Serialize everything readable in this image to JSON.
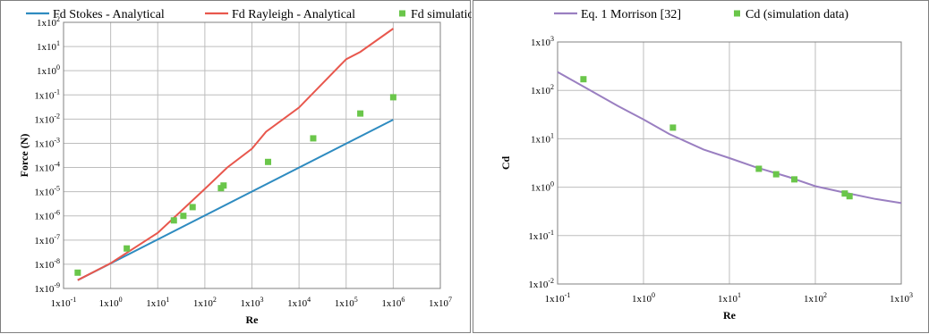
{
  "chart_data": [
    {
      "type": "line",
      "xscale": "log",
      "yscale": "log",
      "xlabel": "Re",
      "ylabel": "Force (N)",
      "xlim": [
        0.1,
        10000000
      ],
      "ylim": [
        1e-09,
        100
      ],
      "x_ticks": [
        {
          "v": 0.1,
          "label": "1x10-1"
        },
        {
          "v": 1,
          "label": "1x100"
        },
        {
          "v": 10,
          "label": "1x101"
        },
        {
          "v": 100,
          "label": "1x102"
        },
        {
          "v": 1000,
          "label": "1x103"
        },
        {
          "v": 10000,
          "label": "1x104"
        },
        {
          "v": 100000,
          "label": "1x105"
        },
        {
          "v": 1000000,
          "label": "1x106"
        },
        {
          "v": 10000000,
          "label": "1x107"
        }
      ],
      "y_ticks": [
        {
          "v": 1e-09,
          "label": "1x10-9"
        },
        {
          "v": 1e-08,
          "label": "1x10-8"
        },
        {
          "v": 1e-07,
          "label": "1x10-7"
        },
        {
          "v": 1e-06,
          "label": "1x10-6"
        },
        {
          "v": 1e-05,
          "label": "1x10-5"
        },
        {
          "v": 0.0001,
          "label": "1x10-4"
        },
        {
          "v": 0.001,
          "label": "1x10-3"
        },
        {
          "v": 0.01,
          "label": "1x10-2"
        },
        {
          "v": 0.1,
          "label": "1x10-1"
        },
        {
          "v": 1,
          "label": "1x100"
        },
        {
          "v": 10,
          "label": "1x101"
        },
        {
          "v": 100,
          "label": "1x102"
        }
      ],
      "grid": true,
      "legend_position": "top",
      "series": [
        {
          "name": "Fd Stokes - Analytical",
          "kind": "line",
          "color": "#2e8bc0",
          "x": [
            0.2,
            1000000
          ],
          "y": [
            2.2e-09,
            0.0095
          ]
        },
        {
          "name": "Fd Rayleigh - Analytical",
          "kind": "line",
          "color": "#e8574d",
          "x": [
            0.2,
            1,
            10,
            100,
            300,
            1000,
            2000,
            10000,
            100000,
            200000,
            1000000
          ],
          "y": [
            2.2e-09,
            1.1e-08,
            2e-07,
            1.3e-05,
            0.0001,
            0.0006,
            0.003,
            0.03,
            3,
            6,
            55
          ]
        },
        {
          "name": "Fd simulation",
          "kind": "scatter",
          "color": "#6ac64a",
          "x": [
            0.2,
            2.2,
            22,
            35,
            55,
            220,
            250,
            2200,
            20000,
            200000,
            1000000
          ],
          "y": [
            4.5e-09,
            4.5e-08,
            6.5e-07,
            1e-06,
            2.3e-06,
            1.4e-05,
            1.8e-05,
            0.00017,
            0.0016,
            0.017,
            0.08
          ]
        }
      ]
    },
    {
      "type": "line",
      "xscale": "log",
      "yscale": "log",
      "xlabel": "Re",
      "ylabel": "Cd",
      "xlim": [
        0.1,
        1000
      ],
      "ylim": [
        0.01,
        1000
      ],
      "x_ticks": [
        {
          "v": 0.1,
          "label": "1x10-1"
        },
        {
          "v": 1,
          "label": "1x100"
        },
        {
          "v": 10,
          "label": "1x101"
        },
        {
          "v": 100,
          "label": "1x102"
        },
        {
          "v": 1000,
          "label": "1x103"
        }
      ],
      "y_ticks": [
        {
          "v": 0.01,
          "label": "1x10-2"
        },
        {
          "v": 0.1,
          "label": "1x10-1"
        },
        {
          "v": 1,
          "label": "1x100"
        },
        {
          "v": 10,
          "label": "1x101"
        },
        {
          "v": 100,
          "label": "1x102"
        },
        {
          "v": 1000,
          "label": "1x103"
        }
      ],
      "grid": true,
      "legend_position": "top",
      "series": [
        {
          "name": "Eq. 1 Morrison [32]",
          "kind": "line",
          "color": "#9a7fc1",
          "x": [
            0.1,
            0.2,
            0.5,
            1,
            2,
            5,
            10,
            20,
            50,
            100,
            200,
            500,
            1000
          ],
          "y": [
            240,
            120,
            48,
            25,
            12.5,
            6,
            4,
            2.6,
            1.6,
            1.05,
            0.8,
            0.57,
            0.47
          ]
        },
        {
          "name": "Cd (simulation data)",
          "kind": "scatter",
          "color": "#6ac64a",
          "x": [
            0.2,
            2.2,
            22,
            35,
            57,
            220,
            250
          ],
          "y": [
            170,
            17,
            2.4,
            1.85,
            1.45,
            0.74,
            0.65
          ]
        }
      ]
    }
  ]
}
